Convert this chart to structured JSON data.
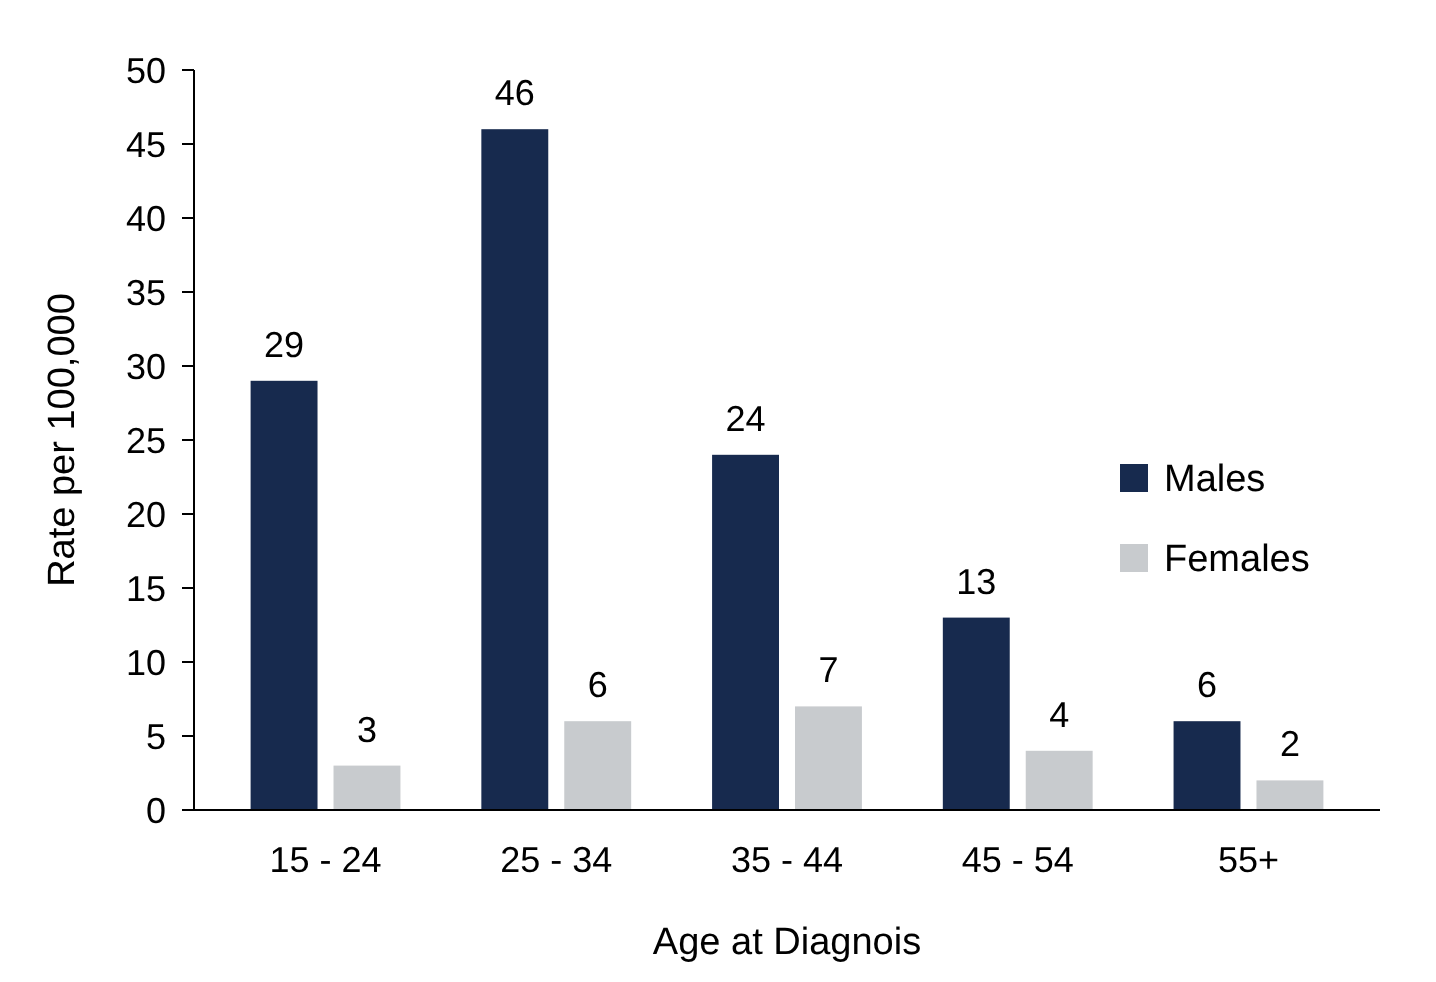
{
  "chart_data": {
    "type": "bar",
    "xlabel": "Age at Diagnois",
    "ylabel": "Rate per 100,000",
    "categories": [
      "15 - 24",
      "25 - 34",
      "35 - 44",
      "45 - 54",
      "55+"
    ],
    "series": [
      {
        "name": "Males",
        "color": "#172a4e",
        "values": [
          29,
          46,
          24,
          13,
          6
        ]
      },
      {
        "name": "Females",
        "color": "#c8cbce",
        "values": [
          3,
          6,
          7,
          4,
          2
        ]
      }
    ],
    "ylim": [
      0,
      50
    ],
    "yticks": [
      0,
      5,
      10,
      15,
      20,
      25,
      30,
      35,
      40,
      45,
      50
    ],
    "data_labels": true,
    "legend": "right",
    "grid": false
  }
}
